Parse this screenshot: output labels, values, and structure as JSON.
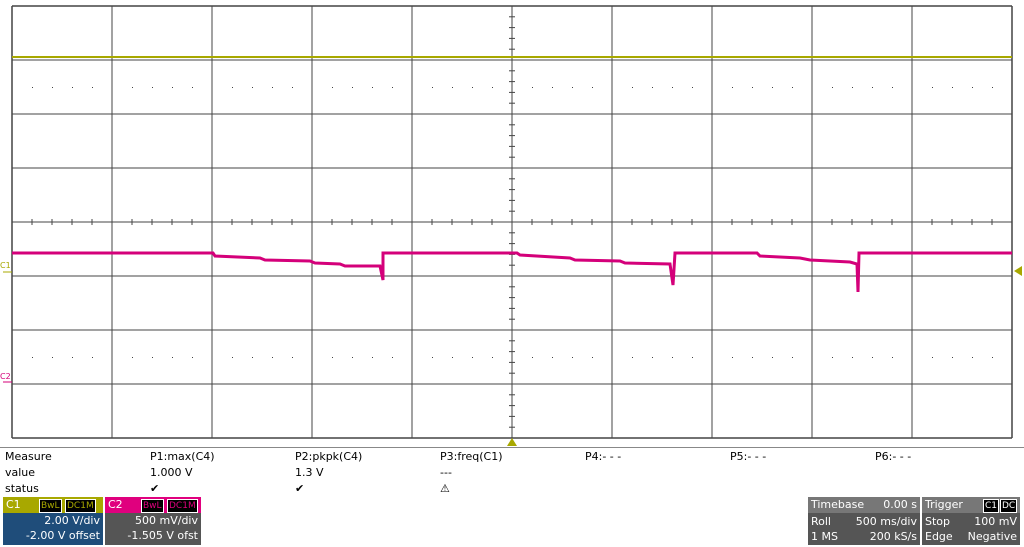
{
  "graticule": {
    "c1_marker": "C1",
    "c2_marker": "C2"
  },
  "measure": {
    "header": [
      "Measure",
      "P1:max(C4)",
      "P2:pkpk(C4)",
      "P3:freq(C1)",
      "P4:- - -",
      "P5:- - -",
      "P6:- - -"
    ],
    "rows": [
      [
        "value",
        "1.000 V",
        "1.3 V",
        "---"
      ],
      [
        "status",
        "✔",
        "✔",
        "⚠"
      ]
    ]
  },
  "channels": [
    {
      "name": "C1",
      "tags": [
        "BwL",
        "DC1M"
      ],
      "scale": "2.00 V/div",
      "offset": "-2.00 V offset"
    },
    {
      "name": "C2",
      "tags": [
        "BwL",
        "DC1M"
      ],
      "scale": "500 mV/div",
      "offset": "-1.505 V ofst"
    }
  ],
  "timebase": {
    "title": "Timebase",
    "delay": "0.00 s",
    "rows": [
      [
        "Roll",
        "500 ms/div"
      ],
      [
        "1 MS",
        "200 kS/s"
      ]
    ]
  },
  "trigger": {
    "title": "Trigger",
    "tags": [
      "C1",
      "DC"
    ],
    "rows": [
      [
        "Stop",
        "100 mV"
      ],
      [
        "Edge",
        "Negative"
      ]
    ]
  }
}
